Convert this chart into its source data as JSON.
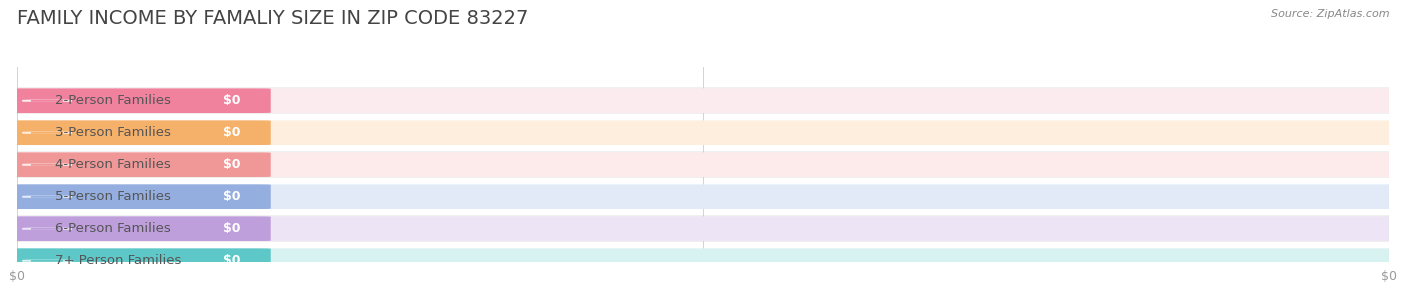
{
  "title": "FAMILY INCOME BY FAMALIY SIZE IN ZIP CODE 83227",
  "source_text": "Source: ZipAtlas.com",
  "categories": [
    "2-Person Families",
    "3-Person Families",
    "4-Person Families",
    "5-Person Families",
    "6-Person Families",
    "7+ Person Families"
  ],
  "values": [
    0,
    0,
    0,
    0,
    0,
    0
  ],
  "bar_colors": [
    "#f0829e",
    "#f5b06a",
    "#f09898",
    "#94aee0",
    "#bf9edc",
    "#5ec8c8"
  ],
  "bar_bg_colors": [
    "#fbeaee",
    "#fdeede",
    "#fdeaea",
    "#e2eaf8",
    "#ede4f5",
    "#d8f2f2"
  ],
  "circle_colors": [
    "#f0829e",
    "#f5b06a",
    "#f09898",
    "#94aee0",
    "#bf9edc",
    "#5ec8c8"
  ],
  "row_stripe_colors": [
    "#f0f0f0",
    "#ffffff"
  ],
  "background_color": "#ffffff",
  "value_label": "$0",
  "xlabel_ticks": [
    "$0",
    "$0"
  ],
  "title_fontsize": 14,
  "label_fontsize": 9.5,
  "value_fontsize": 9,
  "source_fontsize": 8
}
